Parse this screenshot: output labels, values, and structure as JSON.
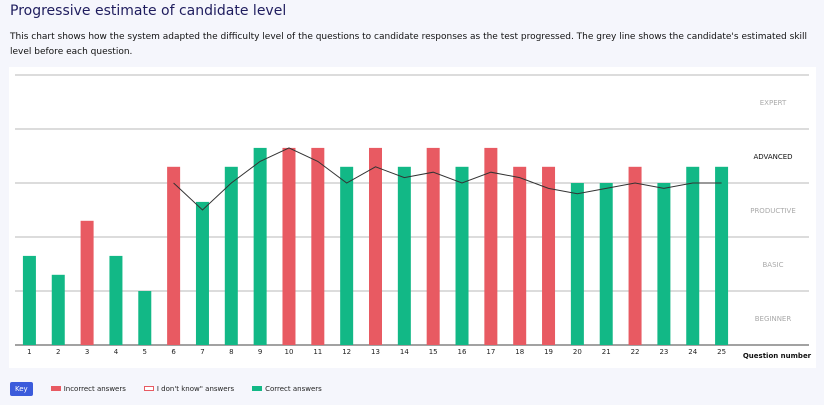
{
  "header": {
    "title": "Progressive estimate of candidate level",
    "description": "This chart shows how the system adapted the difficulty level of the questions to candidate responses as the test progressed. The grey line shows the candidate's estimated skill level before each question."
  },
  "colors": {
    "incorrect": "#e85a62",
    "correct": "#12b886",
    "estimate_line": "#333333",
    "gridline": "#555555",
    "key_badge": "#3b5bdb"
  },
  "chart_data": {
    "type": "bar",
    "xlabel": "Question number",
    "ylabel": "",
    "ylim": [
      0,
      5
    ],
    "level_labels": [
      "BEGINNER",
      "BASIC",
      "PRODUCTIVE",
      "ADVANCED",
      "EXPERT"
    ],
    "highlighted_level": "ADVANCED",
    "categories": [
      "1",
      "2",
      "3",
      "4",
      "5",
      "6",
      "7",
      "8",
      "9",
      "10",
      "11",
      "12",
      "13",
      "14",
      "15",
      "16",
      "17",
      "18",
      "19",
      "20",
      "21",
      "22",
      "23",
      "24",
      "25"
    ],
    "values": [
      1.65,
      1.3,
      2.3,
      1.65,
      1.0,
      3.3,
      2.65,
      3.3,
      3.65,
      3.65,
      3.65,
      3.3,
      3.65,
      3.3,
      3.65,
      3.3,
      3.65,
      3.3,
      3.3,
      3.0,
      3.0,
      3.3,
      3.0,
      3.3,
      3.3
    ],
    "results": [
      "correct",
      "correct",
      "incorrect",
      "correct",
      "correct",
      "incorrect",
      "correct",
      "correct",
      "correct",
      "incorrect",
      "incorrect",
      "correct",
      "incorrect",
      "correct",
      "incorrect",
      "correct",
      "incorrect",
      "incorrect",
      "incorrect",
      "correct",
      "correct",
      "incorrect",
      "correct",
      "correct",
      "correct"
    ],
    "estimate_series": {
      "name": "Estimated skill level",
      "start_question": 6,
      "values": [
        3.0,
        2.5,
        3.0,
        3.4,
        3.65,
        3.4,
        3.0,
        3.3,
        3.1,
        3.2,
        3.0,
        3.2,
        3.1,
        2.9,
        2.8,
        2.9,
        3.0,
        2.9,
        3.0,
        3.0
      ]
    }
  },
  "legend": {
    "key_label": "Key",
    "items": [
      {
        "label": "Incorrect answers",
        "style": "incorrect"
      },
      {
        "label": "I don't know\" answers",
        "style": "dont-know"
      },
      {
        "label": "Correct answers",
        "style": "correct"
      }
    ]
  }
}
